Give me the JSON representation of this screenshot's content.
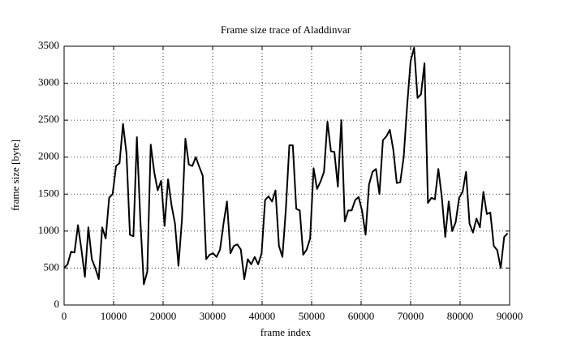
{
  "chart_data": {
    "type": "line",
    "title": "Frame size trace of Aladdinvar",
    "xlabel": "frame index",
    "ylabel": "frame size [byte]",
    "x": [
      0,
      700,
      1400,
      2100,
      2800,
      3500,
      4200,
      4900,
      5600,
      6300,
      7000,
      7700,
      8400,
      9100,
      9800,
      10500,
      11200,
      11900,
      12600,
      13300,
      14000,
      14700,
      15400,
      16100,
      16800,
      17500,
      18200,
      18900,
      19600,
      20300,
      21000,
      21700,
      22400,
      23100,
      23800,
      24500,
      25200,
      25900,
      26600,
      27300,
      28000,
      28700,
      29400,
      30100,
      30800,
      31500,
      32200,
      32900,
      33600,
      34300,
      35000,
      35700,
      36400,
      37100,
      37800,
      38500,
      39200,
      39900,
      40600,
      41300,
      42000,
      42700,
      43400,
      44100,
      44800,
      45500,
      46200,
      46900,
      47600,
      48300,
      49000,
      49700,
      50400,
      51100,
      51800,
      52500,
      53200,
      53900,
      54600,
      55300,
      56000,
      56700,
      57400,
      58100,
      58800,
      59500,
      60200,
      60900,
      61600,
      62300,
      63000,
      63700,
      64400,
      65100,
      65800,
      66500,
      67200,
      67900,
      68600,
      69300,
      70000,
      70700,
      71400,
      72100,
      72800,
      73500,
      74200,
      74900,
      75600,
      76300,
      77000,
      77700,
      78400,
      79100,
      79800,
      80500,
      81200,
      81900,
      82600,
      83300,
      84000,
      84700,
      85400,
      86100,
      86800,
      87500,
      88200,
      88900,
      89600
    ],
    "series": [
      {
        "name": "Aladdinvar",
        "color": "#000000",
        "values": [
          500,
          550,
          720,
          710,
          1080,
          750,
          380,
          1050,
          620,
          500,
          350,
          1050,
          900,
          1450,
          1500,
          1880,
          1920,
          2450,
          2050,
          950,
          930,
          2270,
          1150,
          280,
          450,
          2170,
          1800,
          1550,
          1680,
          1070,
          1700,
          1350,
          1100,
          530,
          1150,
          2250,
          1900,
          1880,
          2000,
          1870,
          1750,
          620,
          680,
          700,
          650,
          750,
          1100,
          1400,
          700,
          800,
          820,
          750,
          350,
          620,
          550,
          650,
          550,
          700,
          1420,
          1470,
          1400,
          1550,
          800,
          650,
          1300,
          2160,
          2160,
          1300,
          1280,
          680,
          750,
          900,
          1850,
          1570,
          1670,
          1800,
          2480,
          2080,
          2070,
          1600,
          2500,
          1130,
          1280,
          1280,
          1420,
          1460,
          1270,
          950,
          1630,
          1800,
          1840,
          1500,
          2230,
          2280,
          2370,
          2100,
          1650,
          1660,
          2000,
          2700,
          3300,
          3480,
          2800,
          2850,
          3270,
          1380,
          1450,
          1430,
          1840,
          1460,
          920,
          1400,
          1000,
          1120,
          1450,
          1530,
          1800,
          1100,
          980,
          1170,
          1050,
          1530,
          1230,
          1250,
          800,
          740,
          500,
          920,
          970
        ]
      }
    ],
    "xlim": [
      0,
      90000
    ],
    "xticks": [
      0,
      10000,
      20000,
      30000,
      40000,
      50000,
      60000,
      70000,
      80000,
      90000
    ],
    "ylim": [
      0,
      3500
    ],
    "yticks": [
      0,
      500,
      1000,
      1500,
      2000,
      2500,
      3000,
      3500
    ],
    "grid": true
  }
}
